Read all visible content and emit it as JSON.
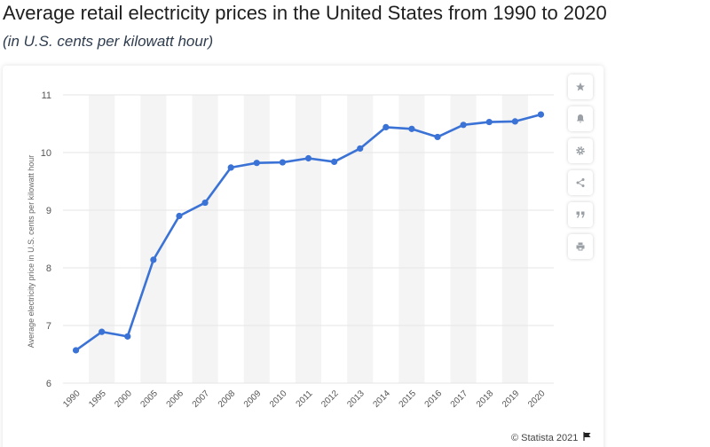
{
  "header": {
    "title": "Average retail electricity prices in the United States from 1990 to 2020",
    "subtitle": "(in U.S. cents per kilowatt hour)"
  },
  "toolbar": {
    "items": [
      {
        "name": "favorite",
        "icon": "star-icon"
      },
      {
        "name": "notification",
        "icon": "bell-icon"
      },
      {
        "name": "settings",
        "icon": "gear-icon"
      },
      {
        "name": "share",
        "icon": "share-icon"
      },
      {
        "name": "cite",
        "icon": "quote-icon"
      },
      {
        "name": "print",
        "icon": "print-icon"
      }
    ]
  },
  "footer": {
    "credit": "© Statista 2021"
  },
  "colors": {
    "line": "#3a72d6",
    "grid": "#e6e6e6",
    "band": "#f4f4f4"
  },
  "chart_data": {
    "type": "line",
    "title": "Average retail electricity prices in the United States from 1990 to 2020",
    "subtitle": "(in U.S. cents per kilowatt hour)",
    "ylabel": "Average electricity price in U.S. cents per kilowatt hour",
    "xlabel": "",
    "ylim": [
      6,
      11
    ],
    "yticks": [
      6,
      7,
      8,
      9,
      10,
      11
    ],
    "grid": true,
    "categories": [
      "1990",
      "1995",
      "2000",
      "2005",
      "2006",
      "2007",
      "2008",
      "2009",
      "2010",
      "2011",
      "2012",
      "2013",
      "2014",
      "2015",
      "2016",
      "2017",
      "2018",
      "2019",
      "2020"
    ],
    "series": [
      {
        "values": [
          6.57,
          6.89,
          6.81,
          8.14,
          8.9,
          9.13,
          9.74,
          9.82,
          9.83,
          9.9,
          9.84,
          10.07,
          10.44,
          10.41,
          10.27,
          10.48,
          10.53,
          10.54,
          10.66
        ]
      }
    ]
  }
}
